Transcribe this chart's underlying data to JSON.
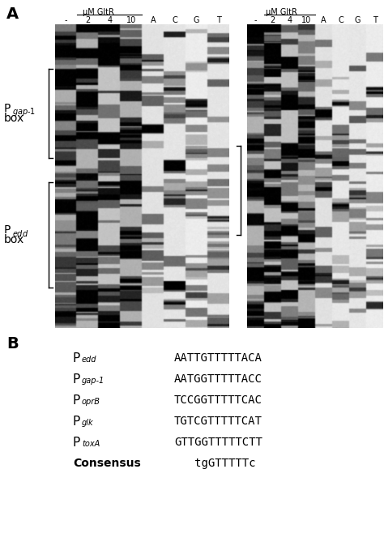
{
  "panel_A_label": "A",
  "panel_B_label": "B",
  "left_gel": {
    "header_label": "μM GltR",
    "lane_labels": [
      "-",
      "2",
      "4",
      "10",
      "A",
      "C",
      "G",
      "T"
    ],
    "n_lanes": 8
  },
  "right_gel": {
    "header_label": "μM GltR",
    "lane_labels": [
      "-",
      "2",
      "4",
      "10",
      "A",
      "C",
      "G",
      "T"
    ],
    "n_lanes": 8
  },
  "panel_B": {
    "rows": [
      {
        "label_p": "P",
        "label_sub": "edd",
        "sequence": "AATTGTTTTTACA"
      },
      {
        "label_p": "P",
        "label_sub": "gap-1",
        "sequence": "AATGGTTTTTACC"
      },
      {
        "label_p": "P",
        "label_sub": "oprB",
        "sequence": "TCCGGTTTTTCAC"
      },
      {
        "label_p": "P",
        "label_sub": "glk",
        "sequence": "TGTCGTTTTTCAT"
      },
      {
        "label_p": "P",
        "label_sub": "toxA",
        "sequence": "GTTGGTTTTTCTT"
      },
      {
        "label_p": "Consensus",
        "label_sub": "",
        "sequence": "   tgGTTTTTc"
      }
    ]
  },
  "background_color": "#ffffff",
  "text_color": "#000000"
}
